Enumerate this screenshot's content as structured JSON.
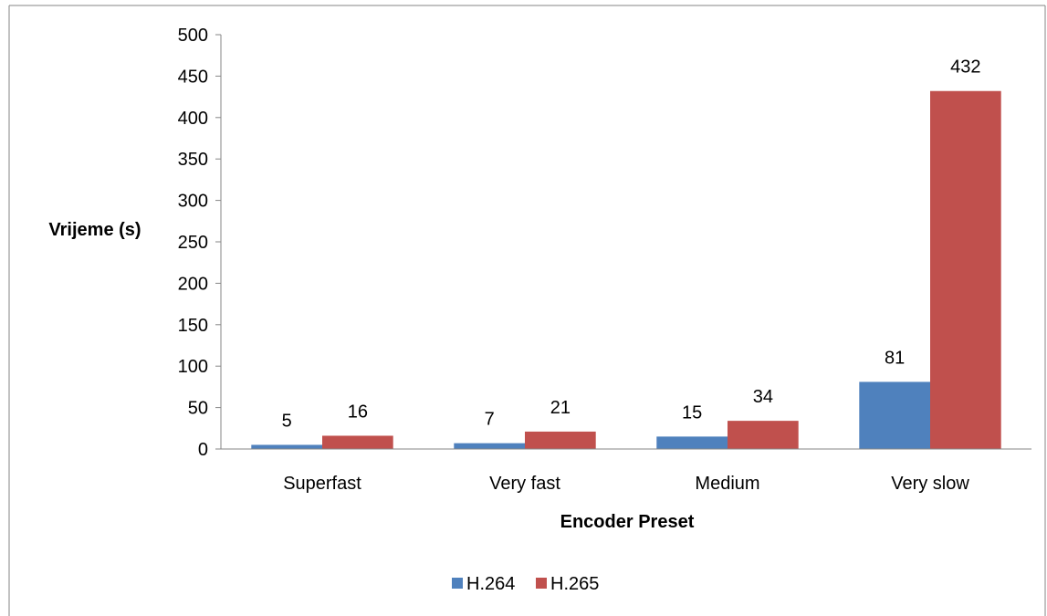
{
  "chart_data": {
    "type": "bar",
    "categories": [
      "Superfast",
      "Very fast",
      "Medium",
      "Very slow"
    ],
    "series": [
      {
        "name": "H.264",
        "values": [
          5,
          7,
          15,
          81
        ],
        "color": "#4F81BD"
      },
      {
        "name": "H.265",
        "values": [
          16,
          21,
          34,
          432
        ],
        "color": "#C0504D"
      }
    ],
    "xlabel": "Encoder Preset",
    "ylabel": "Vrijeme (s)",
    "ylim": [
      0,
      500
    ],
    "yticks": [
      0,
      50,
      100,
      150,
      200,
      250,
      300,
      350,
      400,
      450,
      500
    ],
    "grid": false,
    "data_labels": true,
    "legend_position": "bottom"
  }
}
